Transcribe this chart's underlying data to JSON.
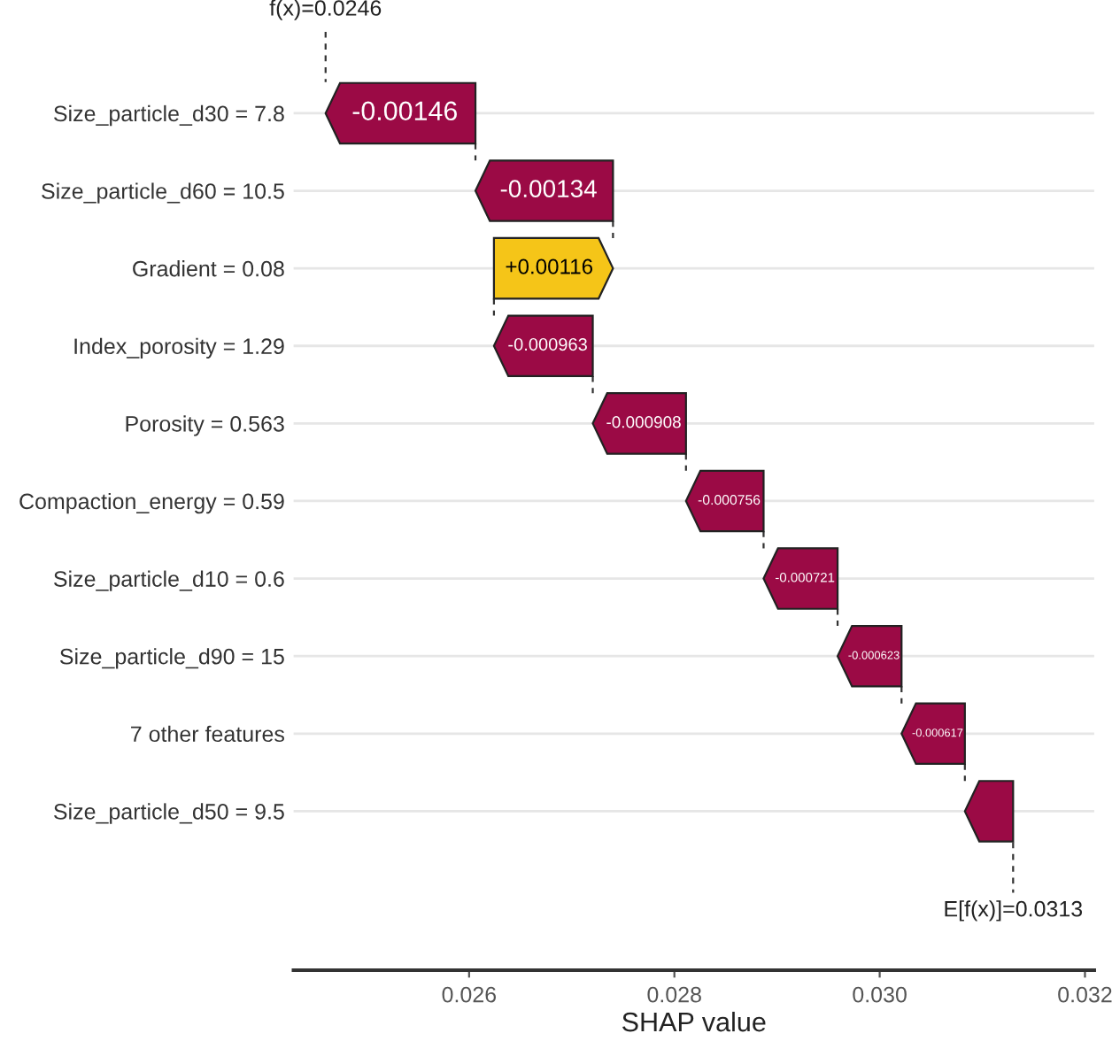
{
  "chart_data": {
    "type": "bar",
    "orientation": "horizontal",
    "xlabel": "SHAP value",
    "categories": [
      "Size_particle_d30 = 7.8",
      "Size_particle_d60 = 10.5",
      "Gradient = 0.08",
      "Index_porosity = 1.29",
      "Porosity = 0.563",
      "Compaction_energy = 0.59",
      "Size_particle_d10 = 0.6",
      "Size_particle_d90 = 15",
      "7 other features",
      "Size_particle_d50 = 9.5"
    ],
    "values": [
      -0.00146,
      -0.00134,
      0.00116,
      -0.000963,
      -0.000908,
      -0.000756,
      -0.000721,
      -0.000623,
      -0.000617,
      -0.00047
    ],
    "base": [
      0.026062,
      0.027402,
      0.026242,
      0.027205,
      0.028113,
      0.028869,
      0.02959,
      0.030213,
      0.03083,
      0.0313
    ],
    "value_labels": [
      "-0.00146",
      "-0.00134",
      "+0.00116",
      "-0.000963",
      "-0.000908",
      "-0.000756",
      "-0.000721",
      "-0.000623",
      "-0.000617",
      null
    ],
    "colors": [
      "#9b0a45",
      "#9b0a45",
      "#f5c518",
      "#9b0a45",
      "#9b0a45",
      "#9b0a45",
      "#9b0a45",
      "#9b0a45",
      "#9b0a45",
      "#9b0a45"
    ],
    "xlim": [
      0.02429,
      0.03209
    ],
    "xticks": [
      0.026,
      0.028,
      {
        "value": 0.03,
        "label": "0.030"
      },
      0.032
    ],
    "grid": "y",
    "annotations": [
      "f(x)=0.0246",
      "E[f(x)]=0.0313"
    ]
  }
}
